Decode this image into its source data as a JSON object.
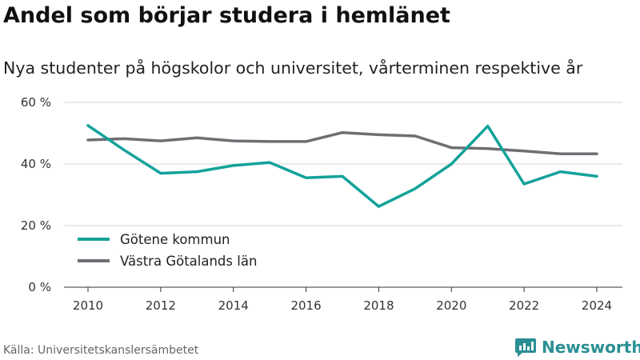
{
  "header": {
    "title": "Andel som börjar studera i hemlänet",
    "subtitle": "Nya studenter på högskolor och universitet, vårterminen respektive år"
  },
  "footer": {
    "source": "Källa: Universitetskanslersämbetet",
    "brand": "Newsworthy"
  },
  "colors": {
    "series_gotene": "#13a29b",
    "series_vg": "#6e6e74",
    "grid": "#d6d6d6",
    "brand": "#2a8f94"
  },
  "chart_data": {
    "type": "line",
    "title": "Andel som börjar studera i hemlänet",
    "subtitle": "Nya studenter på högskolor och universitet, vårterminen respektive år",
    "x": [
      2010,
      2011,
      2012,
      2013,
      2014,
      2015,
      2016,
      2017,
      2018,
      2019,
      2020,
      2021,
      2022,
      2023,
      2024
    ],
    "xticks": [
      "2010",
      "2012",
      "2014",
      "2016",
      "2018",
      "2020",
      "2022",
      "2024"
    ],
    "yticks": [
      "0 %",
      "20 %",
      "40 %",
      "60 %"
    ],
    "ylim": [
      0,
      60
    ],
    "grid": true,
    "legend_position": "bottom-left",
    "series": [
      {
        "name": "Götene kommun",
        "values": [
          52.5,
          44.5,
          37.0,
          37.5,
          39.5,
          40.5,
          35.5,
          36.0,
          26.2,
          32.0,
          40.0,
          52.3,
          33.5,
          37.5,
          36.0
        ]
      },
      {
        "name": "Västra Götalands län",
        "values": [
          47.8,
          48.2,
          47.5,
          48.5,
          47.5,
          47.3,
          47.3,
          50.2,
          49.5,
          49.1,
          45.3,
          45.0,
          44.2,
          43.3,
          43.3
        ]
      }
    ]
  }
}
